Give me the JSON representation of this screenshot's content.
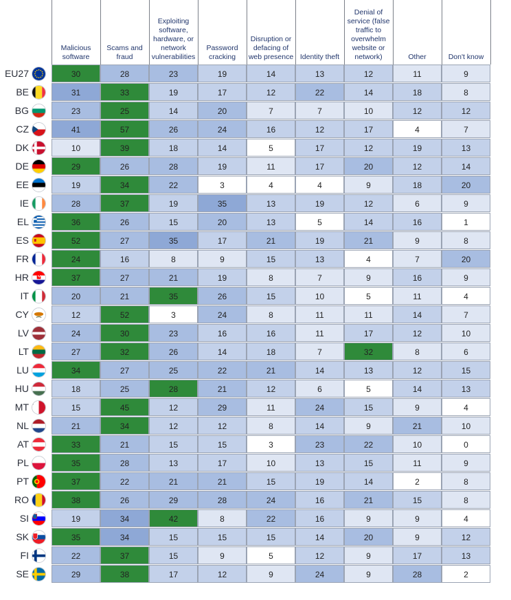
{
  "chart_data": {
    "type": "heatmap",
    "columns": [
      "Malicious software",
      "Scams and fraud",
      "Exploiting software, hardware, or network vulnerabilities",
      "Password cracking",
      "Disruption or defacing of web presence",
      "Identity theft",
      "Denial of service (false traffic to overwhelm website or network)",
      "Other",
      "Don't know"
    ],
    "rows": [
      {
        "label": "EU27",
        "flag": "eu-flag-icon",
        "values": [
          30,
          28,
          23,
          19,
          14,
          13,
          12,
          11,
          9
        ]
      },
      {
        "label": "BE",
        "flag": "belgium-flag-icon",
        "values": [
          31,
          33,
          19,
          17,
          12,
          22,
          14,
          18,
          8
        ]
      },
      {
        "label": "BG",
        "flag": "bulgaria-flag-icon",
        "values": [
          23,
          25,
          14,
          20,
          7,
          7,
          10,
          12,
          12
        ]
      },
      {
        "label": "CZ",
        "flag": "czechia-flag-icon",
        "values": [
          41,
          57,
          26,
          24,
          16,
          12,
          17,
          4,
          7
        ]
      },
      {
        "label": "DK",
        "flag": "denmark-flag-icon",
        "values": [
          10,
          39,
          18,
          14,
          5,
          17,
          12,
          19,
          13
        ]
      },
      {
        "label": "DE",
        "flag": "germany-flag-icon",
        "values": [
          29,
          26,
          28,
          19,
          11,
          17,
          20,
          12,
          14
        ]
      },
      {
        "label": "EE",
        "flag": "estonia-flag-icon",
        "values": [
          19,
          34,
          22,
          3,
          4,
          4,
          9,
          18,
          20
        ]
      },
      {
        "label": "IE",
        "flag": "ireland-flag-icon",
        "values": [
          28,
          37,
          19,
          35,
          13,
          19,
          12,
          6,
          9
        ]
      },
      {
        "label": "EL",
        "flag": "greece-flag-icon",
        "values": [
          36,
          26,
          15,
          20,
          13,
          5,
          14,
          16,
          1
        ]
      },
      {
        "label": "ES",
        "flag": "spain-flag-icon",
        "values": [
          52,
          27,
          35,
          17,
          21,
          19,
          21,
          9,
          8
        ]
      },
      {
        "label": "FR",
        "flag": "france-flag-icon",
        "values": [
          24,
          16,
          8,
          9,
          15,
          13,
          4,
          7,
          20
        ]
      },
      {
        "label": "HR",
        "flag": "croatia-flag-icon",
        "values": [
          37,
          27,
          21,
          19,
          8,
          7,
          9,
          16,
          9
        ]
      },
      {
        "label": "IT",
        "flag": "italy-flag-icon",
        "values": [
          20,
          21,
          35,
          26,
          15,
          10,
          5,
          11,
          4
        ]
      },
      {
        "label": "CY",
        "flag": "cyprus-flag-icon",
        "values": [
          12,
          52,
          3,
          24,
          8,
          11,
          11,
          14,
          7
        ]
      },
      {
        "label": "LV",
        "flag": "latvia-flag-icon",
        "values": [
          24,
          30,
          23,
          16,
          16,
          11,
          17,
          12,
          10
        ]
      },
      {
        "label": "LT",
        "flag": "lithuania-flag-icon",
        "values": [
          27,
          32,
          26,
          14,
          18,
          7,
          32,
          8,
          6
        ]
      },
      {
        "label": "LU",
        "flag": "luxembourg-flag-icon",
        "values": [
          34,
          27,
          25,
          22,
          21,
          14,
          13,
          12,
          15
        ]
      },
      {
        "label": "HU",
        "flag": "hungary-flag-icon",
        "values": [
          18,
          25,
          28,
          21,
          12,
          6,
          5,
          14,
          13
        ]
      },
      {
        "label": "MT",
        "flag": "malta-flag-icon",
        "values": [
          15,
          45,
          12,
          29,
          11,
          24,
          15,
          9,
          4
        ]
      },
      {
        "label": "NL",
        "flag": "netherlands-flag-icon",
        "values": [
          21,
          34,
          12,
          12,
          8,
          14,
          9,
          21,
          10
        ]
      },
      {
        "label": "AT",
        "flag": "austria-flag-icon",
        "values": [
          33,
          21,
          15,
          15,
          3,
          23,
          22,
          10,
          0
        ]
      },
      {
        "label": "PL",
        "flag": "poland-flag-icon",
        "values": [
          35,
          28,
          13,
          17,
          10,
          13,
          15,
          11,
          9
        ]
      },
      {
        "label": "PT",
        "flag": "portugal-flag-icon",
        "values": [
          37,
          22,
          21,
          21,
          15,
          19,
          14,
          2,
          8
        ]
      },
      {
        "label": "RO",
        "flag": "romania-flag-icon",
        "values": [
          38,
          26,
          29,
          28,
          24,
          16,
          21,
          15,
          8
        ]
      },
      {
        "label": "SI",
        "flag": "slovenia-flag-icon",
        "values": [
          19,
          34,
          42,
          8,
          22,
          16,
          9,
          9,
          4
        ]
      },
      {
        "label": "SK",
        "flag": "slovakia-flag-icon",
        "values": [
          35,
          34,
          15,
          15,
          15,
          14,
          20,
          9,
          12
        ]
      },
      {
        "label": "FI",
        "flag": "finland-flag-icon",
        "values": [
          22,
          37,
          15,
          9,
          5,
          12,
          9,
          17,
          13
        ]
      },
      {
        "label": "SE",
        "flag": "sweden-flag-icon",
        "values": [
          29,
          38,
          17,
          12,
          9,
          24,
          9,
          28,
          2
        ]
      }
    ],
    "highlight_color": "#2f8a3a",
    "shade_colors": [
      "#ffffff",
      "#dfe6f3",
      "#c3d1ea",
      "#a8bde1",
      "#8ea8d6"
    ]
  }
}
